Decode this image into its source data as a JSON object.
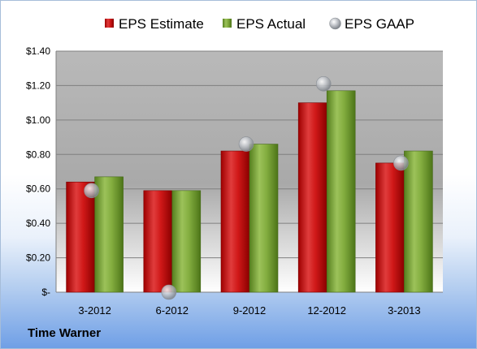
{
  "company": "Time Warner",
  "chart_data": {
    "type": "bar",
    "categories": [
      "3-2012",
      "6-2012",
      "9-2012",
      "12-2012",
      "3-2013"
    ],
    "series": [
      {
        "name": "EPS Estimate",
        "kind": "bar",
        "color": "#c00000",
        "values": [
          0.64,
          0.59,
          0.82,
          1.1,
          0.75
        ]
      },
      {
        "name": "EPS Actual",
        "kind": "bar",
        "color": "#6f9a2b",
        "values": [
          0.67,
          0.59,
          0.86,
          1.17,
          0.82
        ]
      },
      {
        "name": "EPS GAAP",
        "kind": "marker",
        "color": "#b8bcc2",
        "values": [
          0.59,
          0.0,
          0.86,
          1.21,
          0.75
        ]
      }
    ],
    "ylim": [
      0,
      1.4
    ],
    "yticks": [
      0,
      0.2,
      0.4,
      0.6,
      0.8,
      1.0,
      1.2,
      1.4
    ],
    "ytick_labels": [
      "$-",
      "$0.20",
      "$0.40",
      "$0.60",
      "$0.80",
      "$1.00",
      "$1.20",
      "$1.40"
    ],
    "grid": true,
    "legend_position": "top"
  }
}
